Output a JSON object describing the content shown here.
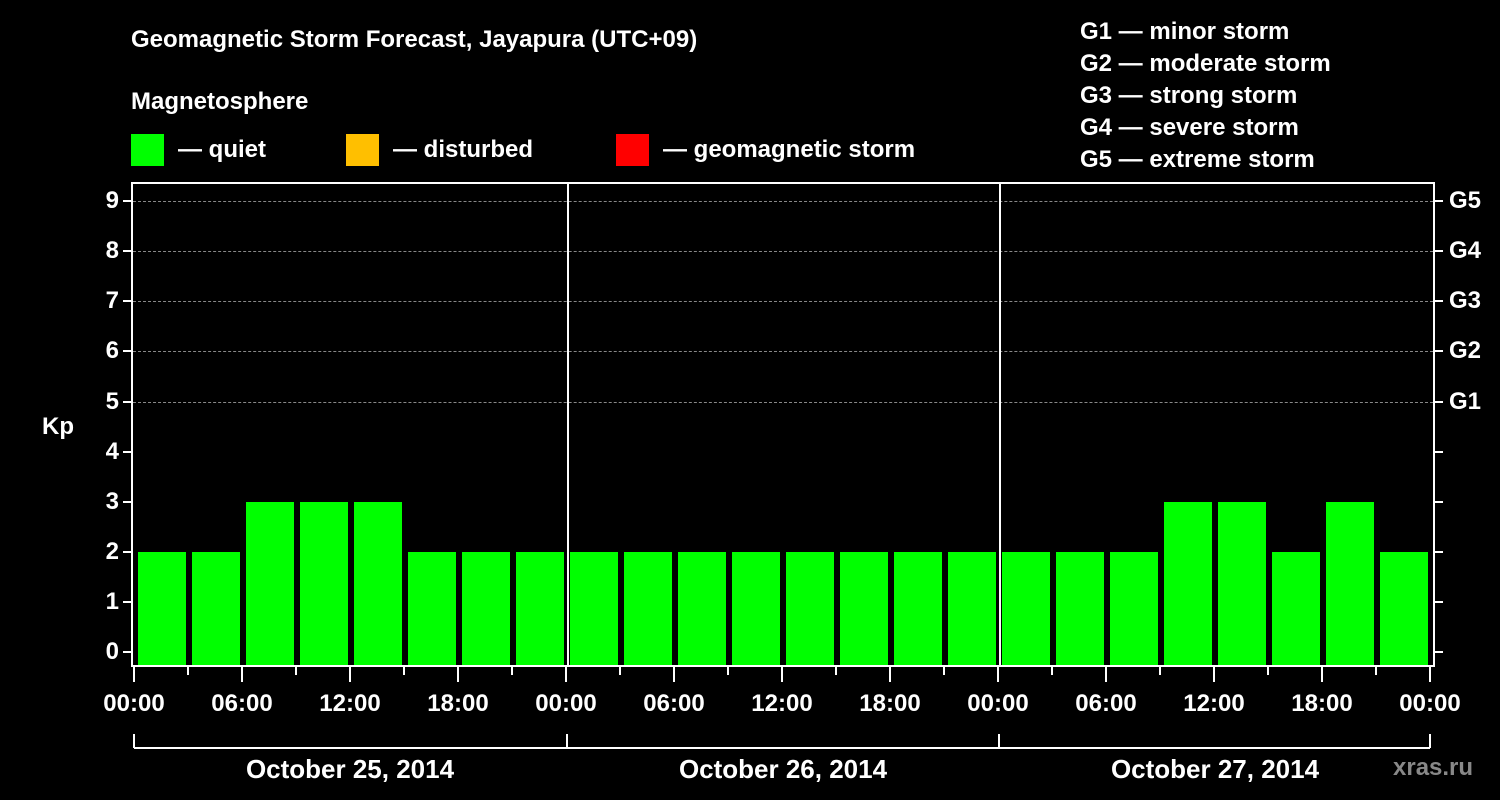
{
  "header": {
    "title": "Geomagnetic Storm Forecast, Jayapura (UTC+09)",
    "subtitle": "Magnetosphere"
  },
  "legend": [
    {
      "label": "— quiet",
      "color": "#00ff00"
    },
    {
      "label": "— disturbed",
      "color": "#ffbf00"
    },
    {
      "label": "— geomagnetic storm",
      "color": "#ff0000"
    }
  ],
  "g_legend": [
    "G1 — minor storm",
    "G2 — moderate storm",
    "G3 — strong storm",
    "G4 — severe storm",
    "G5 — extreme storm"
  ],
  "axes": {
    "ylabel": "Kp",
    "y_ticks": [
      "0",
      "1",
      "2",
      "3",
      "4",
      "5",
      "6",
      "7",
      "8",
      "9"
    ],
    "g_ticks": [
      {
        "label": "G1",
        "kp": 5
      },
      {
        "label": "G2",
        "kp": 6
      },
      {
        "label": "G3",
        "kp": 7
      },
      {
        "label": "G4",
        "kp": 8
      },
      {
        "label": "G5",
        "kp": 9
      }
    ],
    "x_ticks": [
      "00:00",
      "06:00",
      "12:00",
      "18:00",
      "00:00",
      "06:00",
      "12:00",
      "18:00",
      "00:00",
      "06:00",
      "12:00",
      "18:00",
      "00:00"
    ],
    "days": [
      "October 25, 2014",
      "October 26, 2014",
      "October 27, 2014"
    ]
  },
  "brand": "xras.ru",
  "chart_data": {
    "type": "bar",
    "title": "Geomagnetic Storm Forecast, Jayapura (UTC+09)",
    "xlabel": "",
    "ylabel": "Kp",
    "ylim": [
      0,
      9
    ],
    "grid": "dashed horizontal at Kp 5-9",
    "legend_position": "top",
    "categories": [
      "Oct 25 00:00",
      "Oct 25 03:00",
      "Oct 25 06:00",
      "Oct 25 09:00",
      "Oct 25 12:00",
      "Oct 25 15:00",
      "Oct 25 18:00",
      "Oct 25 21:00",
      "Oct 26 00:00",
      "Oct 26 03:00",
      "Oct 26 06:00",
      "Oct 26 09:00",
      "Oct 26 12:00",
      "Oct 26 15:00",
      "Oct 26 18:00",
      "Oct 26 21:00",
      "Oct 27 00:00",
      "Oct 27 03:00",
      "Oct 27 06:00",
      "Oct 27 09:00",
      "Oct 27 12:00",
      "Oct 27 15:00",
      "Oct 27 18:00",
      "Oct 27 21:00"
    ],
    "series": [
      {
        "name": "Kp",
        "values": [
          2,
          2,
          3,
          3,
          3,
          2,
          2,
          2,
          2,
          2,
          2,
          2,
          2,
          2,
          2,
          2,
          2,
          2,
          2,
          3,
          3,
          2,
          3,
          2
        ],
        "colors": [
          "quiet"
        ]
      }
    ],
    "legend": [
      "quiet",
      "disturbed",
      "geomagnetic storm"
    ],
    "right_axis": {
      "G1": 5,
      "G2": 6,
      "G3": 7,
      "G4": 8,
      "G5": 9
    }
  }
}
